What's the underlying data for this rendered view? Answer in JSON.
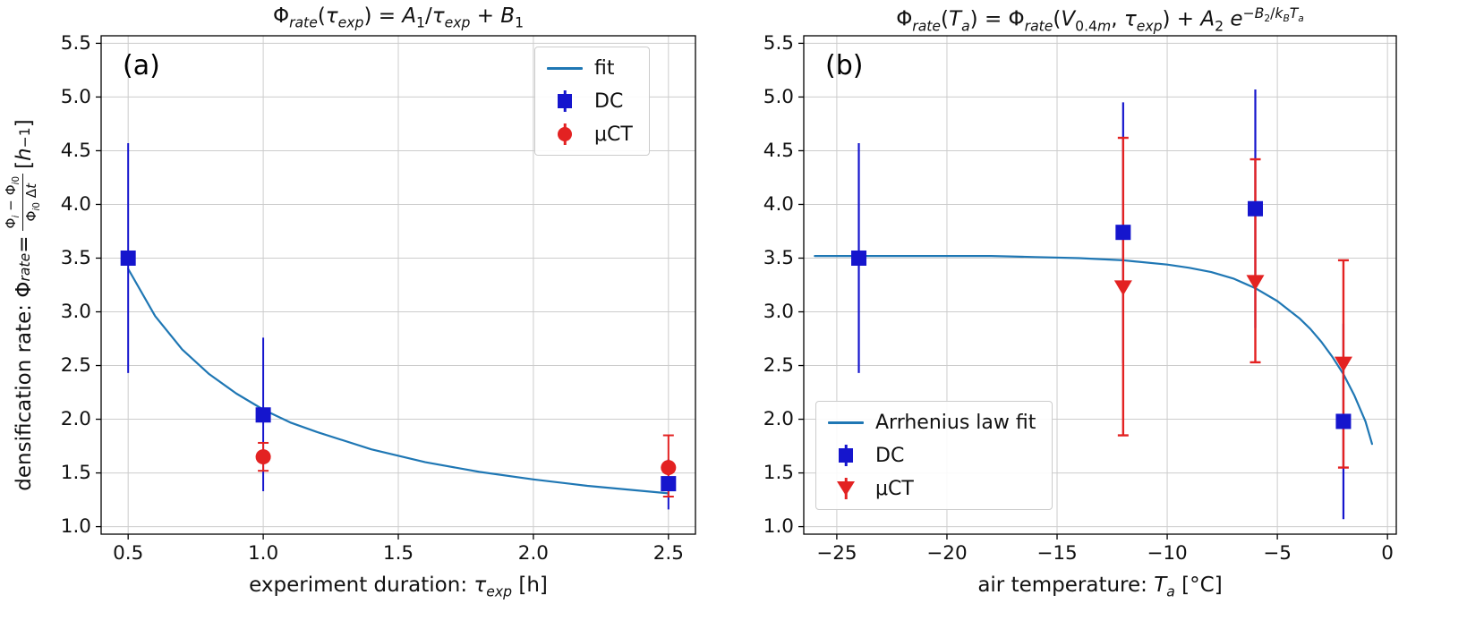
{
  "figure": {
    "background": "#ffffff",
    "panels": [
      {
        "label": "(a)"
      },
      {
        "label": "(b)"
      }
    ],
    "colors": {
      "fit_line": "#1f77b4",
      "dc_marker": "#1515cd",
      "uct_marker": "#e32222",
      "grid": "#cccccc",
      "spine": "#000000"
    }
  },
  "chart_data": [
    {
      "type": "scatter",
      "panel": "(a)",
      "title": "Phi_rate(tau_exp) = A1/tau_exp + B1",
      "title_html": "Φ<sub><i>rate</i></sub>(<i>τ</i><sub><i>exp</i></sub>) = <i>A</i><sub>1</sub>/<i>τ</i><sub><i>exp</i></sub> + <i>B</i><sub>1</sub>",
      "xlabel": "experiment duration: tau_exp [h]",
      "xlabel_html": "experiment duration: <i>τ</i><sub><i>exp</i></sub> [h]",
      "ylabel": "densification rate: Phi_rate = (Phi_i - Phi_i0)/(Phi_i0 dt) [1/h]",
      "ylabel_html": "densification rate: Φ<sub><i>rate</i></sub> = <span class='frac'><span class='num'>Φ<sub><i>i</i></sub> − Φ<sub><i>i</i>0</sub></span><span class='den'>Φ<sub><i>i</i>0</sub> Δ<i>t</i></span></span> [<i>h</i><sup>−1</sup>]",
      "xlim": [
        0.4,
        2.6
      ],
      "ylim": [
        0.93,
        5.57
      ],
      "xticks": [
        0.5,
        1.0,
        1.5,
        2.0,
        2.5
      ],
      "xtick_labels": [
        "0.5",
        "1.0",
        "1.5",
        "2.0",
        "2.5"
      ],
      "yticks": [
        1.0,
        1.5,
        2.0,
        2.5,
        3.0,
        3.5,
        4.0,
        4.5,
        5.0,
        5.5
      ],
      "ytick_labels": [
        "1.0",
        "1.5",
        "2.0",
        "2.5",
        "3.0",
        "3.5",
        "4.0",
        "4.5",
        "5.0",
        "5.5"
      ],
      "grid": true,
      "legend": {
        "location": "upper right",
        "entries": [
          {
            "label": "fit",
            "marker": "line",
            "color": "#1f77b4"
          },
          {
            "label": "DC",
            "marker": "square",
            "color": "#1515cd"
          },
          {
            "label": "μCT",
            "marker": "circle",
            "color": "#e32222"
          }
        ]
      },
      "series": [
        {
          "name": "fit",
          "type": "line",
          "color": "#1f77b4",
          "lw": 2.2,
          "x": [
            0.5,
            0.6,
            0.7,
            0.8,
            0.9,
            1.0,
            1.1,
            1.2,
            1.4,
            1.6,
            1.8,
            2.0,
            2.2,
            2.5
          ],
          "y": [
            3.4,
            2.96,
            2.65,
            2.42,
            2.24,
            2.09,
            1.97,
            1.88,
            1.72,
            1.6,
            1.51,
            1.44,
            1.38,
            1.31
          ]
        },
        {
          "name": "DC",
          "type": "scatter",
          "marker": "square",
          "color": "#1515cd",
          "lw": 2,
          "caps": false,
          "x": [
            0.5,
            1.0,
            2.5
          ],
          "y": [
            3.5,
            2.04,
            1.4
          ],
          "y_lo": [
            2.43,
            1.33,
            1.16
          ],
          "y_hi": [
            4.57,
            2.76,
            1.63
          ]
        },
        {
          "name": "μCT",
          "type": "scatter",
          "marker": "circle",
          "color": "#e32222",
          "lw": 2,
          "caps": true,
          "x": [
            1.0,
            2.5
          ],
          "y": [
            1.65,
            1.55
          ],
          "y_lo": [
            1.52,
            1.28
          ],
          "y_hi": [
            1.78,
            1.85
          ]
        }
      ]
    },
    {
      "type": "scatter",
      "panel": "(b)",
      "title": "Phi_rate(T_a) = Phi_rate(V_0.4m, tau_exp) + A2 e^(-B2/kB Ta)",
      "title_html": "Φ<sub><i>rate</i></sub>(<i>T</i><sub><i>a</i></sub>) = Φ<sub><i>rate</i></sub>(<i>V</i><sub>0.4<i>m</i></sub>, <i>τ</i><sub><i>exp</i></sub>) + <i>A</i><sub>2</sub> <i>e</i><sup>−<i>B</i><sub>2</sub>/<i>k</i><sub><i>B</i></sub><i>T</i><sub><i>a</i></sub></sup>",
      "xlabel": "air temperature: T_a [degC]",
      "xlabel_html": "air temperature: <i>T</i><sub><i>a</i></sub> [°C]",
      "ylabel": "",
      "ylabel_html": "",
      "xlim": [
        -26.5,
        0.4
      ],
      "ylim": [
        0.93,
        5.57
      ],
      "xticks": [
        -25,
        -20,
        -15,
        -10,
        -5,
        0
      ],
      "xtick_labels": [
        "−25",
        "−20",
        "−15",
        "−10",
        "−5",
        "0"
      ],
      "yticks": [
        1.0,
        1.5,
        2.0,
        2.5,
        3.0,
        3.5,
        4.0,
        4.5,
        5.0,
        5.5
      ],
      "ytick_labels": [
        "1.0",
        "1.5",
        "2.0",
        "2.5",
        "3.0",
        "3.5",
        "4.0",
        "4.5",
        "5.0",
        "5.5"
      ],
      "grid": true,
      "legend": {
        "location": "lower left",
        "entries": [
          {
            "label": "Arrhenius law fit",
            "marker": "line",
            "color": "#1f77b4"
          },
          {
            "label": "DC",
            "marker": "square",
            "color": "#1515cd"
          },
          {
            "label": "μCT",
            "marker": "triangle-down",
            "color": "#e32222"
          }
        ]
      },
      "series": [
        {
          "name": "Arrhenius law fit",
          "type": "line",
          "color": "#1f77b4",
          "lw": 2.2,
          "x": [
            -26,
            -24,
            -22,
            -20,
            -18,
            -16,
            -14,
            -12,
            -10,
            -9,
            -8,
            -7,
            -6,
            -5,
            -4,
            -3.5,
            -3,
            -2.5,
            -2,
            -1.5,
            -1,
            -0.7
          ],
          "y": [
            3.52,
            3.52,
            3.52,
            3.52,
            3.52,
            3.51,
            3.5,
            3.48,
            3.44,
            3.41,
            3.37,
            3.31,
            3.22,
            3.1,
            2.94,
            2.84,
            2.72,
            2.58,
            2.42,
            2.22,
            1.98,
            1.77
          ]
        },
        {
          "name": "DC",
          "type": "scatter",
          "marker": "square",
          "color": "#1515cd",
          "lw": 2.2,
          "caps": false,
          "x": [
            -24,
            -12,
            -6,
            -2
          ],
          "y": [
            3.5,
            3.74,
            3.96,
            1.98
          ],
          "y_lo": [
            2.43,
            2.52,
            2.85,
            1.07
          ],
          "y_hi": [
            4.57,
            4.95,
            5.07,
            2.89
          ]
        },
        {
          "name": "μCT",
          "type": "scatter",
          "marker": "triangle-down",
          "color": "#e32222",
          "lw": 2.4,
          "caps": true,
          "x": [
            -12,
            -6,
            -2
          ],
          "y": [
            3.23,
            3.28,
            2.52
          ],
          "y_lo": [
            1.85,
            2.53,
            1.55
          ],
          "y_hi": [
            4.62,
            4.42,
            3.48
          ]
        }
      ]
    }
  ]
}
